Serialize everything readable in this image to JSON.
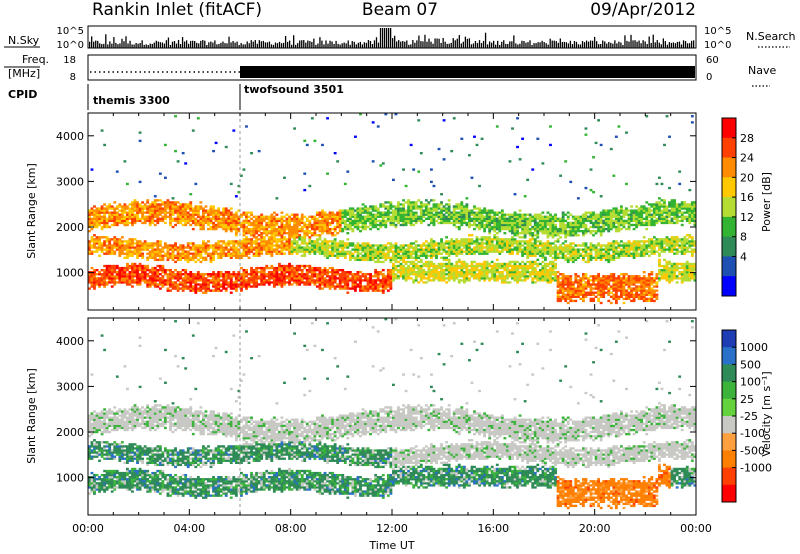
{
  "header": {
    "station": "Rankin Inlet (fitACF)",
    "beam": "Beam 07",
    "date": "09/Apr/2012"
  },
  "strip": {
    "nsky_label": "N.Sky",
    "nsky_ticks": [
      "10^5",
      "10^0"
    ],
    "nsearch_label": "N.Search",
    "nsearch_ticks": [
      "10^5",
      "10^0"
    ],
    "freq_label_1": "Freq.",
    "freq_label_2": "[MHz]",
    "freq_ticks": [
      "18",
      "8"
    ],
    "nave_label": "Nave",
    "nave_ticks": [
      "60",
      "0"
    ],
    "cpid_label": "CPID",
    "cpid_segments": [
      {
        "name": "themis 3300",
        "start_hour": 0,
        "end_hour": 6
      },
      {
        "name": "twofsound 3501",
        "start_hour": 6,
        "end_hour": 24
      }
    ]
  },
  "chart_data": [
    {
      "type": "heatmap",
      "panel": "power",
      "ylabel": "Slant Range [km]",
      "xlim_hours": [
        0,
        24
      ],
      "ylim": [
        180,
        4500
      ],
      "yticks": [
        1000,
        2000,
        3000,
        4000
      ],
      "colorbar_label": "Power [dB]",
      "colorbar_ticks": [
        "28",
        "24",
        "20",
        "16",
        "12",
        "8",
        "4"
      ],
      "colorbar_colors": [
        "#ff0000",
        "#ff4000",
        "#ff8c00",
        "#ffc800",
        "#b4dc32",
        "#32b432",
        "#2e8b57",
        "#1e50b4",
        "#0000ff"
      ]
    },
    {
      "type": "heatmap",
      "panel": "velocity",
      "ylabel": "Slant Range [km]",
      "xlabel": "Time UT",
      "xlim_hours": [
        0,
        24
      ],
      "ylim": [
        180,
        4500
      ],
      "yticks": [
        1000,
        2000,
        3000,
        4000
      ],
      "xticks": [
        "00:00",
        "04:00",
        "08:00",
        "12:00",
        "16:00",
        "20:00",
        "00:00"
      ],
      "colorbar_label": "Velocity [m s⁻¹]",
      "colorbar_ticks": [
        "1000",
        "500",
        "100",
        "25",
        "-25",
        "-100",
        "-500",
        "-1000"
      ],
      "colorbar_colors": [
        "#1e3cb4",
        "#2870c8",
        "#2e8b57",
        "#3cb43c",
        "#64d23c",
        "#c8c8c4",
        "#ffa040",
        "#ff8000",
        "#ff4000",
        "#ff0000"
      ]
    }
  ]
}
